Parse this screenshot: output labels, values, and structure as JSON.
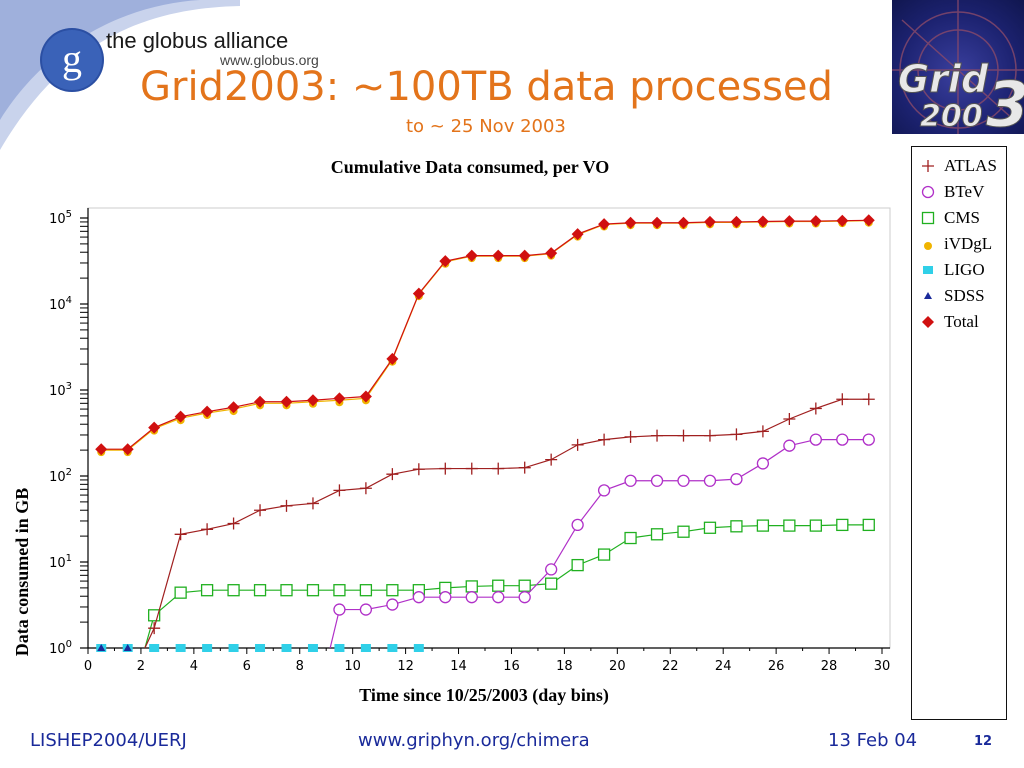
{
  "header": {
    "org_name": "the globus alliance",
    "org_url": "www.globus.org",
    "title": "Grid2003: ~100TB data processed",
    "subtitle": "to ~ 25 Nov 2003",
    "grid_logo_line1": "Grid",
    "grid_logo_line2": "200",
    "grid_logo_digit": "3"
  },
  "footer": {
    "left": "LISHEP2004/UERJ",
    "center": "www.griphyn.org/chimera",
    "right": "13 Feb 04",
    "page": "12"
  },
  "colors": {
    "title": "#e3741b",
    "footer": "#1a2a9a",
    "atlas": "#a02020",
    "btev": "#b030c8",
    "cms": "#20b020",
    "ivdgl": "#f0b400",
    "ligo": "#30d0e8",
    "sdss": "#1a2a9a",
    "total": "#d01010"
  },
  "chart_data": {
    "type": "line",
    "title": "Cumulative Data consumed, per VO",
    "xlabel": "Time since 10/25/2003 (day bins)",
    "ylabel": "Data consumed in GB",
    "xlim": [
      0,
      30
    ],
    "ylim": [
      1,
      100000
    ],
    "yscale": "log",
    "xticks": [
      0,
      2,
      4,
      6,
      8,
      10,
      12,
      14,
      16,
      18,
      20,
      22,
      24,
      26,
      28,
      30
    ],
    "ytick_labels": [
      "10^0",
      "10^1",
      "10^2",
      "10^3",
      "10^4",
      "10^5"
    ],
    "legend_position": "right",
    "series": [
      {
        "name": "ATLAS",
        "marker": "plus",
        "color": "#a02020",
        "x": [
          2.5,
          3.5,
          4.5,
          5.5,
          6.5,
          7.5,
          8.5,
          9.5,
          10.5,
          11.5,
          12.5,
          13.5,
          14.5,
          15.5,
          16.5,
          17.5,
          18.5,
          19.5,
          20.5,
          21.5,
          22.5,
          23.5,
          24.5,
          25.5,
          26.5,
          27.5,
          28.5,
          29.5
        ],
        "y": [
          1.7,
          21,
          24,
          28,
          40,
          45,
          48,
          68,
          72,
          105,
          120,
          122,
          122,
          122,
          125,
          155,
          230,
          265,
          285,
          295,
          295,
          295,
          305,
          330,
          460,
          610,
          780,
          780
        ]
      },
      {
        "name": "BTeV",
        "marker": "circle",
        "color": "#b030c8",
        "x": [
          9.5,
          10.5,
          11.5,
          12.5,
          13.5,
          14.5,
          15.5,
          16.5,
          17.5,
          18.5,
          19.5,
          20.5,
          21.5,
          22.5,
          23.5,
          24.5,
          25.5,
          26.5,
          27.5,
          28.5,
          29.5
        ],
        "y": [
          2.8,
          2.8,
          3.2,
          3.9,
          3.9,
          3.9,
          3.9,
          3.9,
          8.2,
          27,
          68,
          88,
          88,
          88,
          88,
          92,
          140,
          225,
          265,
          265,
          265
        ]
      },
      {
        "name": "CMS",
        "marker": "square",
        "color": "#20b020",
        "x": [
          2.5,
          3.5,
          4.5,
          5.5,
          6.5,
          7.5,
          8.5,
          9.5,
          10.5,
          11.5,
          12.5,
          13.5,
          14.5,
          15.5,
          16.5,
          17.5,
          18.5,
          19.5,
          20.5,
          21.5,
          22.5,
          23.5,
          24.5,
          25.5,
          26.5,
          27.5,
          28.5,
          29.5
        ],
        "y": [
          2.4,
          4.4,
          4.7,
          4.7,
          4.7,
          4.7,
          4.7,
          4.7,
          4.7,
          4.7,
          4.7,
          5.0,
          5.2,
          5.3,
          5.3,
          5.6,
          9.2,
          12.2,
          19,
          21,
          22.5,
          25,
          26,
          26.5,
          26.5,
          26.5,
          27,
          27
        ]
      },
      {
        "name": "iVDgL",
        "marker": "dot",
        "color": "#f0b400",
        "x": [
          0.5,
          1.5,
          2.5,
          3.5,
          4.5,
          5.5,
          6.5,
          7.5,
          8.5,
          9.5,
          10.5,
          11.5,
          12.5,
          13.5,
          14.5,
          15.5,
          16.5,
          17.5,
          18.5,
          19.5,
          20.5,
          21.5,
          22.5,
          23.5,
          24.5,
          25.5,
          26.5,
          27.5,
          28.5,
          29.5
        ],
        "y": [
          200,
          200,
          355,
          470,
          540,
          600,
          700,
          700,
          730,
          760,
          800,
          2250,
          13000,
          31000,
          36000,
          36000,
          36000,
          38500,
          64000,
          84000,
          87000,
          87000,
          87000,
          89000,
          89000,
          90000,
          91000,
          91000,
          92000,
          93000
        ]
      },
      {
        "name": "LIGO",
        "marker": "filled-square",
        "color": "#30d0e8",
        "x": [
          0.5,
          1.5,
          2.5,
          3.5,
          4.5,
          5.5,
          6.5,
          7.5,
          8.5,
          9.5,
          10.5,
          11.5,
          12.5
        ],
        "y": [
          1,
          1,
          1,
          1,
          1,
          1,
          1,
          1,
          1,
          1,
          1,
          1,
          1
        ]
      },
      {
        "name": "SDSS",
        "marker": "triangle",
        "color": "#1a2a9a",
        "x": [
          0.5,
          1.5
        ],
        "y": [
          1,
          1
        ]
      },
      {
        "name": "Total",
        "marker": "diamond",
        "color": "#d01010",
        "x": [
          0.5,
          1.5,
          2.5,
          3.5,
          4.5,
          5.5,
          6.5,
          7.5,
          8.5,
          9.5,
          10.5,
          11.5,
          12.5,
          13.5,
          14.5,
          15.5,
          16.5,
          17.5,
          18.5,
          19.5,
          20.5,
          21.5,
          22.5,
          23.5,
          24.5,
          25.5,
          26.5,
          27.5,
          28.5,
          29.5
        ],
        "y": [
          205,
          205,
          365,
          490,
          560,
          630,
          730,
          730,
          760,
          800,
          840,
          2300,
          13200,
          31500,
          36500,
          36500,
          36500,
          39000,
          65000,
          85000,
          88000,
          88000,
          88000,
          90000,
          90000,
          91000,
          92000,
          92000,
          93000,
          94000
        ]
      }
    ]
  }
}
